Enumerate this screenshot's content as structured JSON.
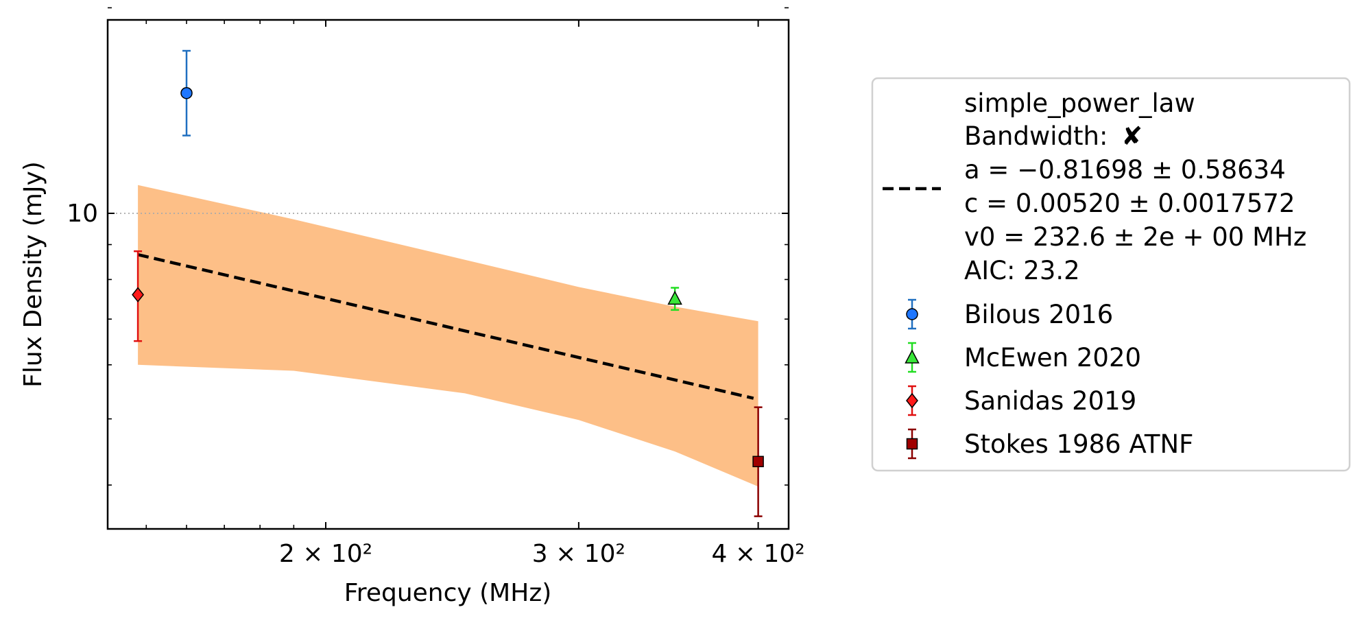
{
  "chart_data": {
    "type": "scatter",
    "xlabel": "Frequency (MHz)",
    "ylabel": "Flux Density (mJy)",
    "x_scale": "log",
    "y_scale": "log",
    "xlim": [
      141,
      420
    ],
    "ylim": [
      3.45,
      19.2
    ],
    "x_ticks": [
      {
        "value": 200,
        "label": "2 × 10²"
      },
      {
        "value": 300,
        "label": "3 × 10²"
      },
      {
        "value": 400,
        "label": "4 × 10²"
      }
    ],
    "y_ticks": [
      {
        "value": 10,
        "label": "10"
      }
    ],
    "reference_line": {
      "y": 10,
      "style": "dotted"
    },
    "grid": false,
    "legend_position": "outside-right",
    "fit": {
      "model": "simple_power_law",
      "bandwidth_label": "Bandwidth:",
      "bandwidth_mark": "✘",
      "a_text": "a = −0.81698 ± 0.58634",
      "c_text": "c = 0.00520 ± 0.0017572",
      "v0_text": "v0 = 232.6 ± 2e + 00 MHz",
      "aic_text": "AIC: 23.2",
      "line": {
        "x": [
          148,
          397
        ],
        "y": [
          8.7,
          5.36
        ]
      },
      "band": {
        "x": [
          148,
          190,
          250,
          300,
          350,
          400
        ],
        "upper": [
          11.0,
          9.8,
          8.55,
          7.8,
          7.3,
          6.95
        ],
        "lower": [
          6.0,
          5.88,
          5.45,
          4.98,
          4.48,
          3.98
        ]
      },
      "line_color": "#000000",
      "band_color": "#fdbf87"
    },
    "series": [
      {
        "name": "Bilous 2016",
        "marker": "circle",
        "color": "#1f77ff",
        "errcolor": "#1f6fc0",
        "points": [
          {
            "x": 160,
            "y": 15.0,
            "ylo": 13.0,
            "yhi": 17.3
          }
        ]
      },
      {
        "name": "McEwen 2020",
        "marker": "triangle",
        "color": "#39e639",
        "errcolor": "#22dd22",
        "points": [
          {
            "x": 350,
            "y": 7.5,
            "ylo": 7.22,
            "yhi": 7.78
          }
        ]
      },
      {
        "name": "Sanidas 2019",
        "marker": "diamond",
        "color": "#ff1a1a",
        "errcolor": "#e01010",
        "points": [
          {
            "x": 148,
            "y": 7.6,
            "ylo": 6.5,
            "yhi": 8.8
          }
        ]
      },
      {
        "name": "Stokes 1986 ATNF",
        "marker": "square",
        "color": "#a00000",
        "errcolor": "#8b0000",
        "points": [
          {
            "x": 400,
            "y": 4.33,
            "ylo": 3.6,
            "yhi": 5.2
          }
        ]
      }
    ]
  }
}
